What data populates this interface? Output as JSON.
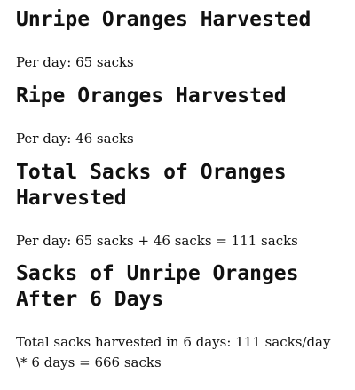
{
  "sections": [
    {
      "heading": "Unripe Oranges Harvested",
      "text": "Per day: 65 sacks"
    },
    {
      "heading": "Ripe Oranges Harvested",
      "text": "Per day: 46 sacks"
    },
    {
      "heading": "Total Sacks of Oranges Harvested",
      "text": "Per day: 65 sacks + 46 sacks = 111 sacks"
    },
    {
      "heading": "Sacks of Unripe Oranges After 6 Days",
      "text": "Total sacks harvested in 6 days: 111 sacks/day \\* 6 days = 666 sacks"
    }
  ]
}
